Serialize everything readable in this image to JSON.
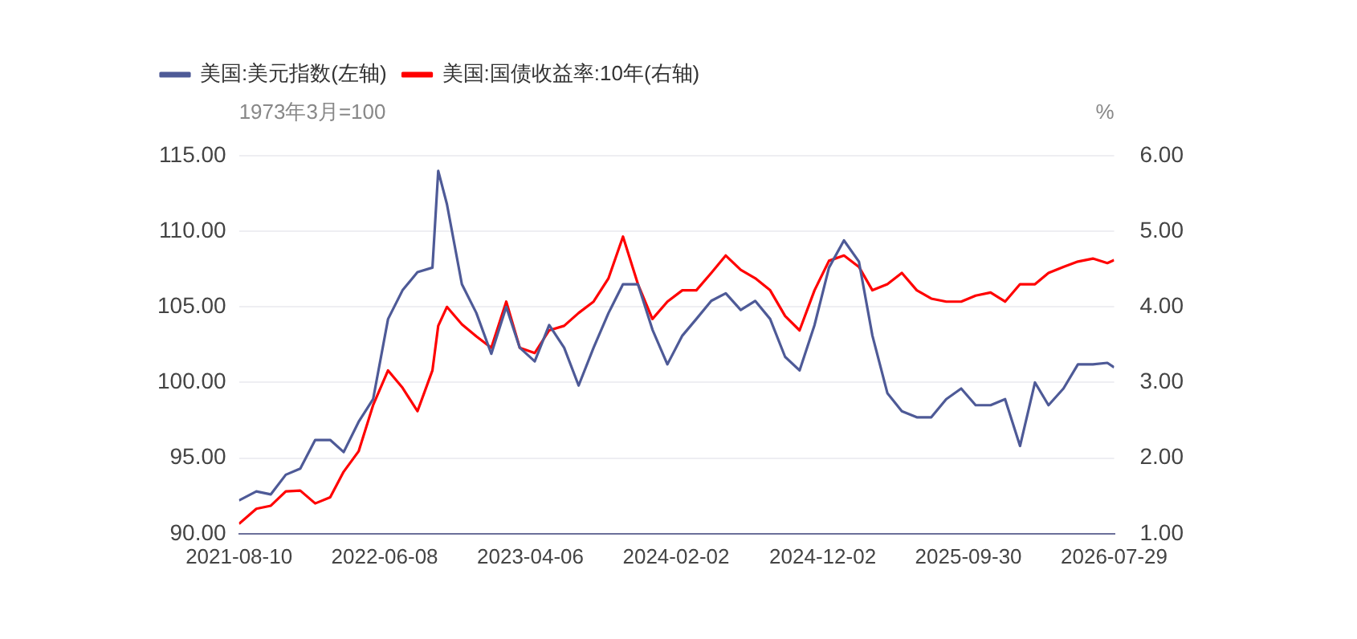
{
  "chart_data": {
    "type": "line",
    "ylabel": "1973年3月=100",
    "y2label": "%",
    "legend": "top left",
    "grid": "y",
    "x": [
      "2021-08-10",
      "2021-09-15",
      "2021-10-15",
      "2021-11-15",
      "2021-12-15",
      "2022-01-15",
      "2022-02-15",
      "2022-03-15",
      "2022-04-15",
      "2022-05-15",
      "2022-06-15",
      "2022-07-15",
      "2022-08-15",
      "2022-09-15",
      "2022-09-27",
      "2022-10-15",
      "2022-11-15",
      "2022-12-15",
      "2023-01-15",
      "2023-02-15",
      "2023-03-15",
      "2023-04-15",
      "2023-05-15",
      "2023-06-15",
      "2023-07-15",
      "2023-08-15",
      "2023-09-15",
      "2023-10-15",
      "2023-11-15",
      "2023-12-15",
      "2024-01-15",
      "2024-02-15",
      "2024-03-15",
      "2024-04-15",
      "2024-05-15",
      "2024-06-15",
      "2024-07-15",
      "2024-08-15",
      "2024-09-15",
      "2024-10-15",
      "2024-11-15",
      "2024-12-15",
      "2025-01-15",
      "2025-02-15",
      "2025-03-15",
      "2025-04-15",
      "2025-05-15",
      "2025-06-15",
      "2025-07-15",
      "2025-08-15",
      "2025-09-15",
      "2025-10-15",
      "2025-11-15",
      "2025-12-15",
      "2026-01-15",
      "2026-02-15",
      "2026-03-15",
      "2026-04-15",
      "2026-05-15",
      "2026-06-15",
      "2026-07-15",
      "2026-07-29"
    ],
    "series": [
      {
        "name": "美国:美元指数(左轴)",
        "color": "#4e5a97",
        "values": [
          92.2,
          92.8,
          92.6,
          93.9,
          94.3,
          96.2,
          96.2,
          95.4,
          97.4,
          98.9,
          104.2,
          106.1,
          107.3,
          107.6,
          114.0,
          111.8,
          106.5,
          104.6,
          101.9,
          105.0,
          102.3,
          101.4,
          103.8,
          102.3,
          99.8,
          102.3,
          104.6,
          106.5,
          106.5,
          103.5,
          101.2,
          103.1,
          104.2,
          105.4,
          105.9,
          104.8,
          105.4,
          104.2,
          101.7,
          100.8,
          103.8,
          107.6,
          109.4,
          108.0,
          103.1,
          99.3,
          98.1,
          97.7,
          97.7,
          98.9,
          99.6,
          98.5,
          98.5,
          98.9,
          95.8,
          100.0,
          98.5,
          99.6,
          101.2,
          101.2,
          101.3,
          101.0
        ]
      },
      {
        "name": "美国:国债收益率:10年(右轴)",
        "color": "#ff0000",
        "axis": "y2",
        "values": [
          1.13,
          1.33,
          1.37,
          1.56,
          1.57,
          1.4,
          1.48,
          1.82,
          2.09,
          2.7,
          3.16,
          2.93,
          2.62,
          3.16,
          3.75,
          4.0,
          3.77,
          3.61,
          3.46,
          4.07,
          3.46,
          3.39,
          3.69,
          3.75,
          3.92,
          4.07,
          4.38,
          4.93,
          4.3,
          3.84,
          4.07,
          4.22,
          4.22,
          4.45,
          4.68,
          4.49,
          4.38,
          4.22,
          3.88,
          3.69,
          4.22,
          4.61,
          4.68,
          4.53,
          4.22,
          4.3,
          4.45,
          4.22,
          4.11,
          4.07,
          4.07,
          4.15,
          4.19,
          4.07,
          4.3,
          4.3,
          4.45,
          4.53,
          4.6,
          4.64,
          4.58,
          4.62
        ]
      }
    ],
    "xlim": [
      "2021-08-10",
      "2026-07-29"
    ],
    "xticks": [
      "2021-08-10",
      "2022-06-08",
      "2023-04-06",
      "2024-02-02",
      "2024-12-02",
      "2025-09-30",
      "2026-07-29"
    ],
    "ylim": [
      90,
      115
    ],
    "yticks": [
      {
        "value": 90,
        "label": "90.00"
      },
      {
        "value": 95,
        "label": "95.00"
      },
      {
        "value": 100,
        "label": "100.00"
      },
      {
        "value": 105,
        "label": "105.00"
      },
      {
        "value": 110,
        "label": "110.00"
      },
      {
        "value": 115,
        "label": "115.00"
      }
    ],
    "y2lim": [
      1,
      6
    ],
    "y2ticks": [
      {
        "value": 1,
        "label": "1.00"
      },
      {
        "value": 2,
        "label": "2.00"
      },
      {
        "value": 3,
        "label": "3.00"
      },
      {
        "value": 4,
        "label": "4.00"
      },
      {
        "value": 5,
        "label": "5.00"
      },
      {
        "value": 6,
        "label": "6.00"
      }
    ]
  }
}
